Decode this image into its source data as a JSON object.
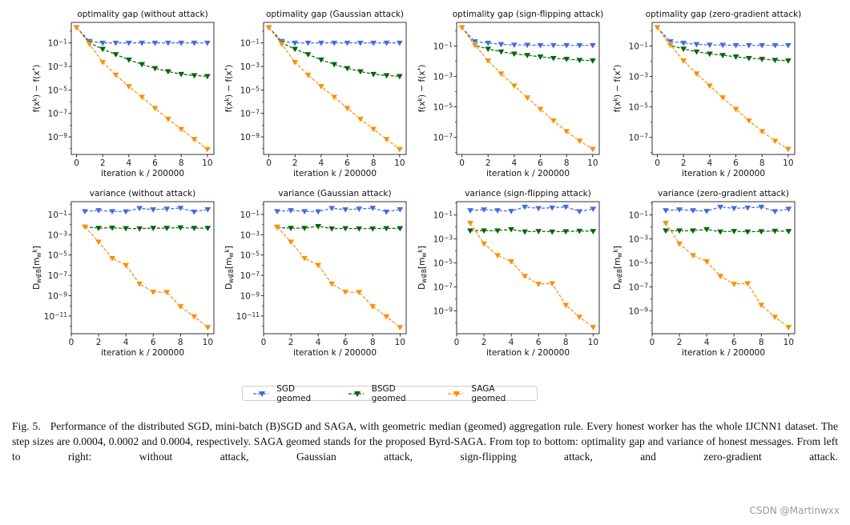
{
  "colors": {
    "SGD geomed": "#4169e1",
    "BSGD geomed": "#006400",
    "SAGA geomed": "#ff8c00"
  },
  "legend": {
    "placement": "bottom-center",
    "items": [
      "SGD geomed",
      "BSGD geomed",
      "SAGA geomed"
    ],
    "marker": "triangle-down",
    "linestyle": "dashed"
  },
  "chart_data": [
    {
      "type": "line",
      "title": "optimality gap (without attack)",
      "xlabel": "iteration k / 200000",
      "ylabel": "f(x^{k}) − f(x^{*})",
      "yscale": "log",
      "xlim": [
        -0.4,
        10.5
      ],
      "ylim": [
        3.2e-11,
        5.6
      ],
      "xticks": [
        0,
        2,
        4,
        6,
        8,
        10
      ],
      "yticks": [
        -1,
        -3,
        -5,
        -7,
        -9
      ],
      "x": [
        0,
        1,
        2,
        3,
        4,
        5,
        6,
        7,
        8,
        9,
        10
      ],
      "series": [
        {
          "name": "SGD geomed",
          "values": [
            2.1,
            0.14,
            0.1,
            0.1,
            0.1,
            0.1,
            0.1,
            0.1,
            0.1,
            0.1,
            0.1
          ]
        },
        {
          "name": "BSGD geomed",
          "values": [
            2.1,
            0.1,
            0.03,
            0.0105,
            0.0037,
            0.0015,
            0.00069,
            0.00037,
            0.00022,
            0.00017,
            0.000145
          ]
        },
        {
          "name": "SAGA geomed",
          "values": [
            2.1,
            0.078,
            0.0023,
            0.00019,
            2e-05,
            2.5e-06,
            2.8e-07,
            3.3e-08,
            4.6e-09,
            6.3e-10,
            8.9e-11
          ]
        }
      ]
    },
    {
      "type": "line",
      "title": "optimality gap (Gaussian attack)",
      "xlabel": "iteration k / 200000",
      "ylabel": "f(x^{k}) − f(x^{*})",
      "yscale": "log",
      "xlim": [
        -0.4,
        10.5
      ],
      "ylim": [
        3.2e-11,
        5.6
      ],
      "xticks": [
        0,
        2,
        4,
        6,
        8,
        10
      ],
      "yticks": [
        -1,
        -3,
        -5,
        -7,
        -9
      ],
      "x": [
        0,
        1,
        2,
        3,
        4,
        5,
        6,
        7,
        8,
        9,
        10
      ],
      "series": [
        {
          "name": "SGD geomed",
          "values": [
            2.1,
            0.14,
            0.1,
            0.1,
            0.1,
            0.1,
            0.1,
            0.1,
            0.1,
            0.1,
            0.1
          ]
        },
        {
          "name": "BSGD geomed",
          "values": [
            2.1,
            0.1,
            0.03,
            0.0105,
            0.0037,
            0.0015,
            0.00069,
            0.00037,
            0.00022,
            0.00017,
            0.000145
          ]
        },
        {
          "name": "SAGA geomed",
          "values": [
            2.1,
            0.078,
            0.0023,
            0.00019,
            2e-05,
            2.5e-06,
            2.8e-07,
            3.3e-08,
            4.6e-09,
            6.3e-10,
            8.9e-11
          ]
        }
      ]
    },
    {
      "type": "line",
      "title": "optimality gap (sign-flipping attack)",
      "xlabel": "iteration k / 200000",
      "ylabel": "f(x^{k}) − f(x^{*})",
      "yscale": "log",
      "xlim": [
        -0.4,
        10.5
      ],
      "ylim": [
        7.6e-09,
        3.6
      ],
      "xticks": [
        0,
        2,
        4,
        6,
        8,
        10
      ],
      "yticks": [
        -1,
        -3,
        -5,
        -7
      ],
      "x": [
        0,
        1,
        2,
        3,
        4,
        5,
        6,
        7,
        8,
        9,
        10
      ],
      "series": [
        {
          "name": "SGD geomed",
          "values": [
            1.7,
            0.2,
            0.16,
            0.13,
            0.12,
            0.118,
            0.112,
            0.112,
            0.112,
            0.112,
            0.112
          ]
        },
        {
          "name": "BSGD geomed",
          "values": [
            1.7,
            0.11,
            0.065,
            0.043,
            0.031,
            0.025,
            0.02,
            0.016,
            0.014,
            0.012,
            0.011
          ]
        },
        {
          "name": "SAGA geomed",
          "values": [
            1.7,
            0.12,
            0.011,
            0.00155,
            0.00025,
            4.1e-05,
            7.2e-06,
            1.26e-06,
            2.5e-07,
            5.9e-08,
            1.7e-08
          ]
        }
      ]
    },
    {
      "type": "line",
      "title": "optimality gap (zero-gradient attack)",
      "xlabel": "iteration k / 200000",
      "ylabel": "f(x^{k}) − f(x^{*})",
      "yscale": "log",
      "xlim": [
        -0.4,
        10.5
      ],
      "ylim": [
        7.6e-09,
        3.6
      ],
      "xticks": [
        0,
        2,
        4,
        6,
        8,
        10
      ],
      "yticks": [
        -1,
        -3,
        -5,
        -7
      ],
      "x": [
        0,
        1,
        2,
        3,
        4,
        5,
        6,
        7,
        8,
        9,
        10
      ],
      "series": [
        {
          "name": "SGD geomed",
          "values": [
            1.7,
            0.2,
            0.16,
            0.13,
            0.12,
            0.118,
            0.112,
            0.112,
            0.112,
            0.112,
            0.112
          ]
        },
        {
          "name": "BSGD geomed",
          "values": [
            1.7,
            0.11,
            0.065,
            0.043,
            0.031,
            0.025,
            0.02,
            0.016,
            0.014,
            0.012,
            0.011
          ]
        },
        {
          "name": "SAGA geomed",
          "values": [
            1.7,
            0.12,
            0.011,
            0.00155,
            0.00025,
            4.1e-05,
            7.2e-06,
            1.26e-06,
            2.5e-07,
            5.9e-08,
            1.7e-08
          ]
        }
      ]
    },
    {
      "type": "line",
      "title": "variance (without attack)",
      "xlabel": "iteration k / 200000",
      "ylabel": "D_{w∉B}[m_{w}^{k}]",
      "yscale": "log",
      "xlim": [
        0,
        10.45
      ],
      "ylim": [
        1.8e-13,
        1.8
      ],
      "xticks": [
        0,
        2,
        4,
        6,
        8,
        10
      ],
      "yticks": [
        -1,
        -3,
        -5,
        -7,
        -9,
        -11
      ],
      "x": [
        1,
        2,
        3,
        4,
        5,
        6,
        7,
        8,
        9,
        10
      ],
      "series": [
        {
          "name": "SGD geomed",
          "values": [
            0.2,
            0.25,
            0.2,
            0.19,
            0.4,
            0.3,
            0.35,
            0.42,
            0.18,
            0.31
          ]
        },
        {
          "name": "BSGD geomed",
          "values": [
            0.006,
            0.0045,
            0.0048,
            0.0042,
            0.004,
            0.0045,
            0.0045,
            0.005,
            0.0045,
            0.0045
          ]
        },
        {
          "name": "SAGA geomed",
          "values": [
            0.006,
            0.0002,
            4.9e-06,
            1e-06,
            1.5e-08,
            2.3e-09,
            2.2e-09,
            8.7e-11,
            8.9e-12,
            7.6e-13
          ]
        }
      ]
    },
    {
      "type": "line",
      "title": "variance (Gaussian attack)",
      "xlabel": "iteration k / 200000",
      "ylabel": "D_{w∉B}[m_{w}^{k}]",
      "yscale": "log",
      "xlim": [
        0,
        10.45
      ],
      "ylim": [
        1.8e-13,
        1.8
      ],
      "xticks": [
        0,
        2,
        4,
        6,
        8,
        10
      ],
      "yticks": [
        -1,
        -3,
        -5,
        -7,
        -9,
        -11
      ],
      "x": [
        1,
        2,
        3,
        4,
        5,
        6,
        7,
        8,
        9,
        10
      ],
      "series": [
        {
          "name": "SGD geomed",
          "values": [
            0.2,
            0.25,
            0.2,
            0.19,
            0.4,
            0.3,
            0.35,
            0.42,
            0.18,
            0.31
          ]
        },
        {
          "name": "BSGD geomed",
          "values": [
            0.005,
            0.0045,
            0.0045,
            0.0068,
            0.004,
            0.0042,
            0.004,
            0.004,
            0.0042,
            0.0042
          ]
        },
        {
          "name": "SAGA geomed",
          "values": [
            0.006,
            0.0002,
            4.9e-06,
            1e-06,
            1.5e-08,
            2.3e-09,
            2.2e-09,
            8.7e-11,
            8.9e-12,
            7.6e-13
          ]
        }
      ]
    },
    {
      "type": "line",
      "title": "variance (sign-flipping attack)",
      "xlabel": "iteration k / 200000",
      "ylabel": "D_{w∉B}[m_{w}^{k}]",
      "yscale": "log",
      "xlim": [
        0,
        10.45
      ],
      "ylim": [
        1.2e-11,
        1.3
      ],
      "xticks": [
        0,
        2,
        4,
        6,
        8,
        10
      ],
      "yticks": [
        -1,
        -3,
        -5,
        -7,
        -9
      ],
      "x": [
        1,
        2,
        3,
        4,
        5,
        6,
        7,
        8,
        9,
        10
      ],
      "series": [
        {
          "name": "SGD geomed",
          "values": [
            0.24,
            0.28,
            0.24,
            0.21,
            0.47,
            0.36,
            0.4,
            0.47,
            0.2,
            0.32
          ]
        },
        {
          "name": "BSGD geomed",
          "values": [
            0.0049,
            0.0049,
            0.0049,
            0.0063,
            0.004,
            0.0044,
            0.004,
            0.0042,
            0.0046,
            0.0044
          ]
        },
        {
          "name": "SAGA geomed",
          "values": [
            0.021,
            0.0004,
            4.2e-05,
            1.3e-05,
            7.8e-07,
            1.7e-07,
            1.9e-07,
            3e-09,
            3e-10,
            4.2e-11
          ]
        }
      ]
    },
    {
      "type": "line",
      "title": "variance (zero-gradient attack)",
      "xlabel": "iteration k / 200000",
      "ylabel": "D_{w∉B}[m_{w}^{k}]",
      "yscale": "log",
      "xlim": [
        0,
        10.45
      ],
      "ylim": [
        1.2e-11,
        1.3
      ],
      "xticks": [
        0,
        2,
        4,
        6,
        8,
        10
      ],
      "yticks": [
        -1,
        -3,
        -5,
        -7,
        -9
      ],
      "x": [
        1,
        2,
        3,
        4,
        5,
        6,
        7,
        8,
        9,
        10
      ],
      "series": [
        {
          "name": "SGD geomed",
          "values": [
            0.24,
            0.28,
            0.24,
            0.21,
            0.47,
            0.36,
            0.4,
            0.47,
            0.2,
            0.32
          ]
        },
        {
          "name": "BSGD geomed",
          "values": [
            0.0049,
            0.0049,
            0.0049,
            0.0063,
            0.004,
            0.0044,
            0.004,
            0.0042,
            0.0046,
            0.0044
          ]
        },
        {
          "name": "SAGA geomed",
          "values": [
            0.021,
            0.0004,
            4.2e-05,
            1.3e-05,
            7.8e-07,
            1.7e-07,
            1.9e-07,
            3e-09,
            3e-10,
            4.2e-11
          ]
        }
      ]
    }
  ],
  "caption": {
    "label": "Fig. 5.",
    "text": "Performance of the distributed SGD, mini-batch (B)SGD and SAGA, with geometric median (geomed) aggregation rule. Every honest worker has the whole IJCNN1 dataset. The step sizes are 0.0004, 0.0002 and 0.0004, respectively. SAGA geomed stands for the proposed Byrd-SAGA. From top to bottom: optimality gap and variance of honest messages. From left to right: without attack, Gaussian attack, sign-flipping attack, and zero-gradient attack."
  },
  "watermark": "CSDN @Martinwxx"
}
